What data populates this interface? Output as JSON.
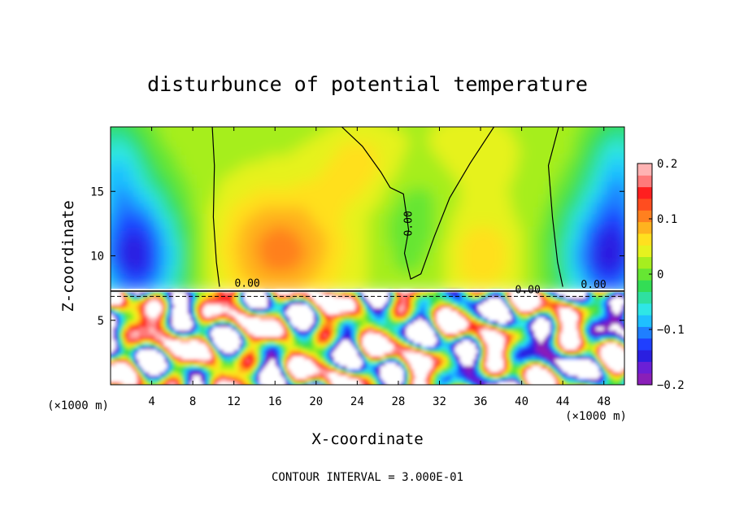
{
  "chart_data": {
    "type": "heatmap",
    "title": "disturbunce of potential temperature",
    "xlabel": "X-coordinate",
    "ylabel": "Z-coordinate",
    "x_unit": "(×1000 m)",
    "xlim": [
      0,
      50
    ],
    "ylim": [
      0,
      20
    ],
    "x_ticks": [
      4,
      8,
      12,
      16,
      20,
      24,
      28,
      32,
      36,
      40,
      44,
      48
    ],
    "y_ticks": [
      5,
      10,
      15
    ],
    "colorbar": {
      "range": [
        -0.2,
        0.2
      ],
      "tick_values": [
        0.2,
        0.1,
        0,
        -0.1,
        -0.2
      ],
      "tick_labels": [
        "0.2",
        "0.1",
        "0",
        "−0.1",
        "−0.2"
      ],
      "colors": [
        "#8a1fb8",
        "#6b1fd6",
        "#2a1fe0",
        "#1f3fff",
        "#1f7fff",
        "#1fbfff",
        "#2fe6e6",
        "#2fe0a0",
        "#33dd55",
        "#66e633",
        "#a6ee1f",
        "#e6f21f",
        "#ffe01f",
        "#ffb31f",
        "#ff801f",
        "#ff4d1f",
        "#ff1f1f",
        "#ff7a7a",
        "#ffb3b3"
      ]
    },
    "contour_label": "0.00",
    "contour_interval_text": "CONTOUR INTERVAL = 3.000E-01",
    "interface_height": 7.3
  }
}
